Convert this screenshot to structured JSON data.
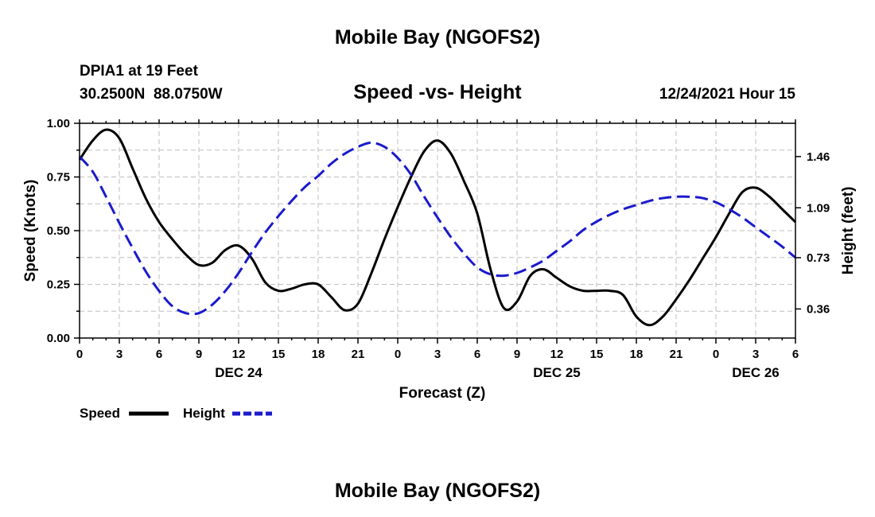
{
  "page": {
    "title": "Mobile Bay (NGOFS2)",
    "station_line": "DPIA1 at 19 Feet",
    "coords_line": "30.2500N  88.0750W",
    "subtitle": "Speed -vs- Height",
    "timestamp": "12/24/2021 Hour 15",
    "footer_title": "Mobile Bay (NGOFS2)"
  },
  "chart_data": {
    "type": "line",
    "title": "Speed -vs- Height",
    "xlabel": "Forecast (Z)",
    "ylabel": "Speed (Knots)",
    "y2label": "Height (feet)",
    "xlim": [
      0,
      54
    ],
    "ylim": [
      0,
      1
    ],
    "y2lim": [
      0.15,
      1.7
    ],
    "x_tick_values": [
      0,
      3,
      6,
      9,
      12,
      15,
      18,
      21,
      24,
      27,
      30,
      33,
      36,
      39,
      42,
      45,
      48,
      51,
      54
    ],
    "x_tick_labels": [
      "0",
      "3",
      "6",
      "9",
      "12",
      "15",
      "18",
      "21",
      "0",
      "3",
      "6",
      "9",
      "12",
      "15",
      "18",
      "21",
      "0",
      "3",
      "6"
    ],
    "date_labels": [
      {
        "x": 12,
        "label": "DEC 24"
      },
      {
        "x": 36,
        "label": "DEC 25"
      },
      {
        "x": 51,
        "label": "DEC 26"
      }
    ],
    "y_tick_values": [
      0.0,
      0.25,
      0.5,
      0.75,
      1.0
    ],
    "y_tick_labels": [
      "0.00",
      "0.25",
      "0.50",
      "0.75",
      "1.00"
    ],
    "y2_tick_values": [
      0.36,
      0.73,
      1.09,
      1.46
    ],
    "y2_tick_labels": [
      "0.36",
      "0.73",
      "1.09",
      "1.46"
    ],
    "grid": true,
    "legend_position": "bottom-left",
    "series": [
      {
        "name": "Speed",
        "axis": "left",
        "color": "#000000",
        "dash": "solid",
        "x": [
          0,
          1,
          2,
          3,
          4,
          5,
          6,
          7,
          8,
          9,
          10,
          11,
          12,
          13,
          14,
          15,
          16,
          17,
          18,
          19,
          20,
          21,
          22,
          23,
          24,
          25,
          26,
          27,
          28,
          29,
          30,
          31,
          32,
          33,
          34,
          35,
          36,
          37,
          38,
          39,
          40,
          41,
          42,
          43,
          44,
          45,
          46,
          47,
          48,
          49,
          50,
          51,
          52,
          53,
          54
        ],
        "values": [
          0.83,
          0.92,
          0.97,
          0.93,
          0.79,
          0.65,
          0.54,
          0.46,
          0.39,
          0.34,
          0.35,
          0.41,
          0.43,
          0.37,
          0.26,
          0.22,
          0.23,
          0.25,
          0.25,
          0.19,
          0.13,
          0.16,
          0.3,
          0.46,
          0.61,
          0.75,
          0.87,
          0.92,
          0.86,
          0.73,
          0.58,
          0.32,
          0.14,
          0.17,
          0.29,
          0.32,
          0.28,
          0.24,
          0.22,
          0.22,
          0.22,
          0.2,
          0.1,
          0.06,
          0.1,
          0.18,
          0.27,
          0.37,
          0.47,
          0.58,
          0.68,
          0.7,
          0.66,
          0.6,
          0.54
        ]
      },
      {
        "name": "Height",
        "axis": "right",
        "color": "#1a1acc",
        "dash": "dashed",
        "x": [
          0,
          1,
          2,
          3,
          4,
          5,
          6,
          7,
          8,
          9,
          10,
          11,
          12,
          13,
          14,
          15,
          16,
          17,
          18,
          19,
          20,
          21,
          22,
          23,
          24,
          25,
          26,
          27,
          28,
          29,
          30,
          31,
          32,
          33,
          34,
          35,
          36,
          37,
          38,
          39,
          40,
          41,
          42,
          43,
          44,
          45,
          46,
          47,
          48,
          49,
          50,
          51,
          52,
          53,
          54
        ],
        "values": [
          1.46,
          1.35,
          1.17,
          0.98,
          0.8,
          0.63,
          0.49,
          0.38,
          0.33,
          0.33,
          0.39,
          0.49,
          0.62,
          0.77,
          0.91,
          1.03,
          1.14,
          1.24,
          1.32,
          1.41,
          1.48,
          1.53,
          1.56,
          1.53,
          1.45,
          1.33,
          1.17,
          1.02,
          0.88,
          0.76,
          0.66,
          0.61,
          0.6,
          0.62,
          0.66,
          0.71,
          0.78,
          0.85,
          0.93,
          0.99,
          1.04,
          1.08,
          1.11,
          1.14,
          1.16,
          1.17,
          1.17,
          1.16,
          1.13,
          1.08,
          1.02,
          0.95,
          0.88,
          0.81,
          0.73
        ]
      }
    ]
  }
}
